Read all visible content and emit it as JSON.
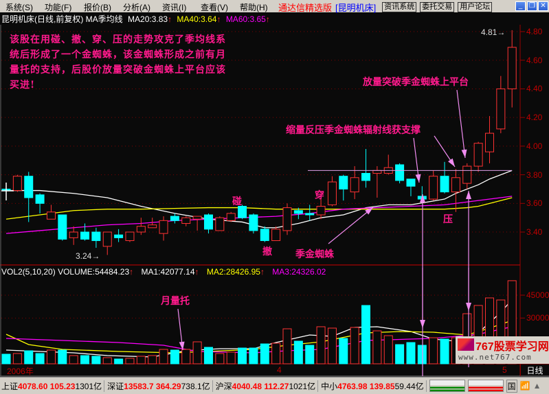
{
  "menu": [
    "系统(S)",
    "功能(F)",
    "报价(B)",
    "分析(A)",
    "资讯(I)",
    "查看(V)",
    "帮助(H)"
  ],
  "brand": "通达信精选版",
  "stock_tag": "[昆明机床]",
  "toolbar": [
    "资讯系统",
    "委托交易",
    "用户论坛"
  ],
  "window_controls": [
    "minimize-icon",
    "restore-icon",
    "close-icon"
  ],
  "title": {
    "name": "昆明机床(日线,前复权)",
    "indicator": "MA季均线",
    "ma20": "MA20:3.83",
    "ma40": "MA40:3.64",
    "ma60": "MA60:3.65",
    "arrow": "↑"
  },
  "volume_title": {
    "name": "VOL2(5,10,20)",
    "volume": "VOLUME:54484.23",
    "ma1": "MA1:42077.14",
    "ma2": "MA2:28426.95",
    "ma3": "MA3:24326.02"
  },
  "annotations": {
    "note": "该股在用碰、撤、穿、压的走势攻克了季均线系统后形成了一个金蜘蛛，该金蜘蛛形成之前有月量托的支持，后股价放量突破金蜘蛛上平台应该买进!",
    "peng": "碰",
    "che": "撤",
    "chuan": "穿",
    "ya": "压",
    "spider": "季金蜘蛛",
    "support": "缩量反压季金蜘蛛辐射线获支撑",
    "breakout": "放量突破季金蜘蛛上平台",
    "month_vol": "月量托",
    "low_label": "3.24",
    "high_label": "4.81"
  },
  "date_axis": {
    "year": "2006年",
    "m4": "4",
    "m5": "5"
  },
  "period": "日线",
  "status": [
    {
      "name": "上证",
      "v1": "4078.60",
      "v2": "105.23",
      "amt": "1301亿"
    },
    {
      "name": "深证",
      "v1": "13583.7",
      "v2": "364.29",
      "amt": "738.1亿"
    },
    {
      "name": "沪深",
      "v1": "4040.48",
      "v2": "112.27",
      "amt": "1021亿"
    },
    {
      "name": "中小",
      "v1": "4763.98",
      "v2": "139.85",
      "amt": "59.44亿"
    }
  ],
  "status_btn": "国",
  "watermark": {
    "text": "767股票学习网",
    "url": "www.net767.com"
  },
  "colors": {
    "up": "#ff3232",
    "down": "#00ffff",
    "ma20": "#ffffff",
    "ma40": "#ffff00",
    "ma60": "#ff00ff",
    "annotation": "#ff1a8c",
    "arrow": "#f08cf0",
    "grid": "#800000"
  },
  "chart_data": [
    {
      "type": "candlestick",
      "title": "昆明机床(日线,前复权)",
      "ylim": [
        3.2,
        4.85
      ],
      "yticks": [
        "3.40",
        "3.60",
        "3.80",
        "4.00",
        "4.20",
        "4.40",
        "4.60",
        "4.80"
      ],
      "grid": true,
      "candles": [
        [
          3.7,
          3.74,
          3.64,
          3.69
        ],
        [
          3.69,
          3.8,
          3.68,
          3.79
        ],
        [
          3.79,
          3.82,
          3.47,
          3.64
        ],
        [
          3.66,
          3.67,
          3.53,
          3.6
        ],
        [
          3.49,
          3.59,
          3.49,
          3.54
        ],
        [
          3.52,
          3.52,
          3.34,
          3.35
        ],
        [
          3.36,
          3.44,
          3.31,
          3.4
        ],
        [
          3.4,
          3.46,
          3.34,
          3.35
        ],
        [
          3.4,
          3.43,
          3.29,
          3.34
        ],
        [
          3.3,
          3.4,
          3.24,
          3.4
        ],
        [
          3.38,
          3.42,
          3.33,
          3.36
        ],
        [
          3.34,
          3.4,
          3.33,
          3.4
        ],
        [
          3.4,
          3.5,
          3.38,
          3.44
        ],
        [
          3.43,
          3.5,
          3.43,
          3.45
        ],
        [
          3.39,
          3.51,
          3.34,
          3.48
        ],
        [
          3.51,
          3.53,
          3.46,
          3.48
        ],
        [
          3.46,
          3.51,
          3.44,
          3.5
        ],
        [
          3.49,
          3.51,
          3.41,
          3.51
        ],
        [
          3.52,
          3.53,
          3.39,
          3.42
        ],
        [
          3.41,
          3.51,
          3.41,
          3.5
        ],
        [
          3.48,
          3.54,
          3.47,
          3.53
        ],
        [
          3.58,
          3.59,
          3.49,
          3.5
        ],
        [
          3.52,
          3.53,
          3.39,
          3.41
        ],
        [
          3.42,
          3.44,
          3.33,
          3.34
        ],
        [
          3.34,
          3.44,
          3.34,
          3.42
        ],
        [
          3.41,
          3.6,
          3.38,
          3.57
        ],
        [
          3.55,
          3.57,
          3.49,
          3.53
        ],
        [
          3.53,
          3.59,
          3.48,
          3.52
        ],
        [
          3.52,
          3.64,
          3.49,
          3.58
        ],
        [
          3.59,
          3.79,
          3.58,
          3.75
        ],
        [
          3.79,
          3.8,
          3.62,
          3.7
        ],
        [
          3.68,
          3.86,
          3.63,
          3.78
        ],
        [
          3.81,
          3.98,
          3.71,
          3.76
        ],
        [
          3.81,
          3.86,
          3.64,
          3.83
        ],
        [
          3.81,
          3.94,
          3.8,
          3.85
        ],
        [
          3.87,
          3.88,
          3.74,
          3.76
        ],
        [
          3.77,
          3.77,
          3.65,
          3.72
        ],
        [
          3.65,
          3.72,
          3.61,
          3.63
        ],
        [
          3.63,
          3.83,
          3.62,
          3.79
        ],
        [
          3.79,
          3.89,
          3.67,
          3.68
        ],
        [
          3.68,
          3.84,
          3.54,
          3.78
        ],
        [
          3.74,
          3.88,
          3.7,
          3.86
        ],
        [
          3.86,
          4.03,
          3.82,
          4.02
        ],
        [
          3.96,
          4.21,
          3.88,
          4.09
        ],
        [
          4.12,
          4.49,
          4.09,
          4.4
        ],
        [
          4.4,
          4.81,
          4.27,
          4.69
        ]
      ],
      "candle_fields": [
        "open",
        "high",
        "low",
        "close"
      ],
      "ma_series": [
        {
          "name": "MA20",
          "points": [
            [
              0,
              3.69
            ],
            [
              3,
              3.69
            ],
            [
              6,
              3.67
            ],
            [
              9,
              3.64
            ],
            [
              12,
              3.58
            ],
            [
              15,
              3.53
            ],
            [
              18,
              3.49
            ],
            [
              21,
              3.47
            ],
            [
              23,
              3.43
            ],
            [
              24,
              3.43
            ],
            [
              26,
              3.46
            ],
            [
              28,
              3.5
            ],
            [
              30,
              3.52
            ],
            [
              32,
              3.57
            ],
            [
              34,
              3.59
            ],
            [
              36,
              3.59
            ],
            [
              39,
              3.63
            ],
            [
              40,
              3.67
            ],
            [
              42,
              3.73
            ],
            [
              43,
              3.77
            ],
            [
              45,
              3.83
            ]
          ]
        },
        {
          "name": "MA40",
          "points": [
            [
              0,
              3.49
            ],
            [
              3,
              3.52
            ],
            [
              6,
              3.55
            ],
            [
              9,
              3.56
            ],
            [
              12,
              3.56
            ],
            [
              18,
              3.57
            ],
            [
              21,
              3.57
            ],
            [
              24,
              3.56
            ],
            [
              27,
              3.56
            ],
            [
              30,
              3.56
            ],
            [
              33,
              3.56
            ],
            [
              36,
              3.56
            ],
            [
              39,
              3.56
            ],
            [
              41,
              3.57
            ],
            [
              42,
              3.58
            ],
            [
              43,
              3.6
            ],
            [
              45,
              3.64
            ]
          ]
        },
        {
          "name": "MA60",
          "points": [
            [
              0,
              3.39
            ],
            [
              3,
              3.41
            ],
            [
              6,
              3.43
            ],
            [
              9,
              3.45
            ],
            [
              12,
              3.46
            ],
            [
              15,
              3.48
            ],
            [
              18,
              3.49
            ],
            [
              21,
              3.5
            ],
            [
              24,
              3.51
            ],
            [
              27,
              3.53
            ],
            [
              30,
              3.56
            ],
            [
              33,
              3.57
            ],
            [
              36,
              3.58
            ],
            [
              39,
              3.59
            ],
            [
              42,
              3.62
            ],
            [
              45,
              3.65
            ]
          ]
        }
      ],
      "reference_line": 3.83
    },
    {
      "type": "bar",
      "title": "VOL2(5,10,20)",
      "yticks": [
        "30000",
        "45000"
      ],
      "ylim": [
        0,
        56000
      ],
      "values": [
        6300,
        6750,
        8550,
        6750,
        9000,
        9000,
        5400,
        5400,
        4950,
        4050,
        3150,
        3600,
        4950,
        5400,
        9450,
        9000,
        9450,
        14400,
        10800,
        6750,
        7650,
        10350,
        10350,
        13050,
        13500,
        22950,
        14850,
        12150,
        24300,
        23400,
        16650,
        23850,
        38250,
        21600,
        18450,
        12600,
        13950,
        12150,
        17100,
        16200,
        17100,
        32850,
        38250,
        43200,
        41850,
        54484
      ],
      "ma_series": [
        {
          "name": "MA1",
          "points": [
            [
              0,
              9000
            ],
            [
              3,
              8100
            ],
            [
              6,
              7200
            ],
            [
              9,
              5400
            ],
            [
              13,
              4500
            ],
            [
              16,
              8550
            ],
            [
              19,
              9900
            ],
            [
              22,
              9900
            ],
            [
              24,
              13950
            ],
            [
              27,
              18900
            ],
            [
              29,
              18000
            ],
            [
              31,
              23850
            ],
            [
              33,
              24300
            ],
            [
              36,
              21150
            ],
            [
              38,
              16200
            ],
            [
              40,
              14850
            ],
            [
              42,
              20250
            ],
            [
              44,
              33750
            ],
            [
              45,
              42077
            ]
          ]
        },
        {
          "name": "MA2",
          "points": [
            [
              0,
              19350
            ],
            [
              2,
              12600
            ],
            [
              5,
              9450
            ],
            [
              10,
              8100
            ],
            [
              15,
              7200
            ],
            [
              18,
              8100
            ],
            [
              22,
              9450
            ],
            [
              25,
              12150
            ],
            [
              28,
              14400
            ],
            [
              32,
              20250
            ],
            [
              35,
              21150
            ],
            [
              38,
              20700
            ],
            [
              41,
              18900
            ],
            [
              43,
              23400
            ],
            [
              45,
              28427
            ]
          ]
        },
        {
          "name": "MA3",
          "points": [
            [
              0,
              16650
            ],
            [
              5,
              15300
            ],
            [
              10,
              13950
            ],
            [
              14,
              12150
            ],
            [
              17,
              8100
            ],
            [
              22,
              7200
            ],
            [
              25,
              8550
            ],
            [
              28,
              9450
            ],
            [
              32,
              15300
            ],
            [
              38,
              16650
            ],
            [
              42,
              19350
            ],
            [
              45,
              24326
            ]
          ]
        }
      ]
    }
  ]
}
